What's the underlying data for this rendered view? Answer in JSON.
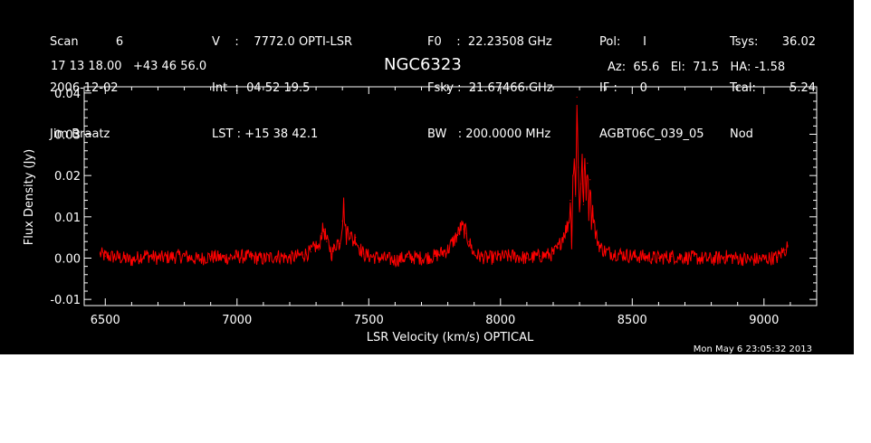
{
  "header": {
    "col1": [
      "Scan          6",
      "2006-12-02",
      "Jim Braatz"
    ],
    "col2": [
      "V    :    7772.0 OPTI-LSR",
      "Int  :  04 52 19.5",
      "LST : +15 38 42.1"
    ],
    "col3": [
      "F0    :  22.23508 GHz",
      "Fsky :  21.67466 GHz",
      "BW   : 200.0000 MHz"
    ],
    "col4": [
      "Pol:      I",
      "IF :      0",
      "AGBT06C_039_05"
    ],
    "col5": [
      "Tsys:",
      "Tcal:",
      "Nod"
    ],
    "col6": [
      "36.02",
      "5.24",
      ""
    ],
    "coords": "17 13 18.00   +43 46 56.0",
    "source": "NGC6323",
    "azel": "Az:  65.6   El:  71.5   HA: -1.58"
  },
  "footer": {
    "timestamp": "Mon May  6 23:05:32 2013"
  },
  "colors": {
    "background": "#000000",
    "spectrum": "#ff0000",
    "axes": "#ffffff"
  },
  "chart_data": {
    "type": "line",
    "title": "NGC6323",
    "xlabel": "LSR Velocity (km/s) OPTICAL",
    "ylabel": "Flux Density (Jy)",
    "xlim": [
      6420,
      9200
    ],
    "ylim": [
      -0.0115,
      0.0415
    ],
    "x_ticks": [
      6500,
      7000,
      7500,
      8000,
      8500,
      9000
    ],
    "y_ticks": [
      -0.01,
      0.0,
      0.01,
      0.02,
      0.03,
      0.04
    ],
    "y_tick_labels": [
      "-0.01",
      "0.00",
      "0.01",
      "0.02",
      "0.03",
      "0.04"
    ],
    "grid": false,
    "series": [
      {
        "color": "#ff0000",
        "x": [
          6480,
          6500,
          6550,
          6600,
          6650,
          6700,
          6750,
          6800,
          6850,
          6900,
          6950,
          7000,
          7050,
          7100,
          7150,
          7200,
          7250,
          7280,
          7300,
          7310,
          7320,
          7330,
          7340,
          7350,
          7360,
          7370,
          7380,
          7390,
          7400,
          7405,
          7410,
          7415,
          7420,
          7430,
          7440,
          7450,
          7460,
          7470,
          7480,
          7500,
          7550,
          7600,
          7650,
          7700,
          7750,
          7800,
          7820,
          7840,
          7850,
          7860,
          7870,
          7880,
          7890,
          7900,
          7920,
          7950,
          8000,
          8050,
          8100,
          8150,
          8200,
          8220,
          8240,
          8250,
          8260,
          8265,
          8270,
          8275,
          8280,
          8285,
          8290,
          8295,
          8300,
          8305,
          8310,
          8315,
          8320,
          8325,
          8330,
          8335,
          8340,
          8345,
          8350,
          8360,
          8370,
          8380,
          8400,
          8450,
          8500,
          8550,
          8600,
          8650,
          8700,
          8750,
          8800,
          8850,
          8900,
          8950,
          9000,
          9050,
          9080,
          9090
        ],
        "y": [
          0.001,
          0.0005,
          0.0002,
          -0.0005,
          0.0008,
          0.0,
          0.0003,
          0.0005,
          -0.0003,
          0.0004,
          0.0,
          0.0004,
          0.0003,
          -0.0002,
          0.0005,
          0.0,
          0.0008,
          0.0015,
          0.003,
          0.002,
          0.006,
          0.007,
          0.004,
          0.003,
          0.001,
          0.0025,
          0.004,
          0.0035,
          0.009,
          0.013,
          0.008,
          0.005,
          0.007,
          0.006,
          0.004,
          0.005,
          0.003,
          0.002,
          0.001,
          0.0005,
          0.0,
          -0.0005,
          0.0003,
          0.0,
          0.0005,
          0.002,
          0.004,
          0.006,
          0.0075,
          0.007,
          0.006,
          0.004,
          0.0025,
          0.001,
          0.0005,
          0.0,
          0.0003,
          0.0005,
          0.0,
          0.0005,
          0.001,
          0.0025,
          0.006,
          0.007,
          0.009,
          0.014,
          0.004,
          0.02,
          0.024,
          0.015,
          0.039,
          0.022,
          0.012,
          0.018,
          0.023,
          0.013,
          0.024,
          0.016,
          0.023,
          0.011,
          0.019,
          0.009,
          0.012,
          0.006,
          0.004,
          0.0025,
          0.0015,
          0.001,
          0.0005,
          0.0003,
          0.0,
          0.0004,
          0.0002,
          0.0,
          -0.0003,
          0.0003,
          0.0,
          -0.0004,
          -0.0002,
          0.0002,
          0.002,
          0.003
        ]
      }
    ]
  }
}
